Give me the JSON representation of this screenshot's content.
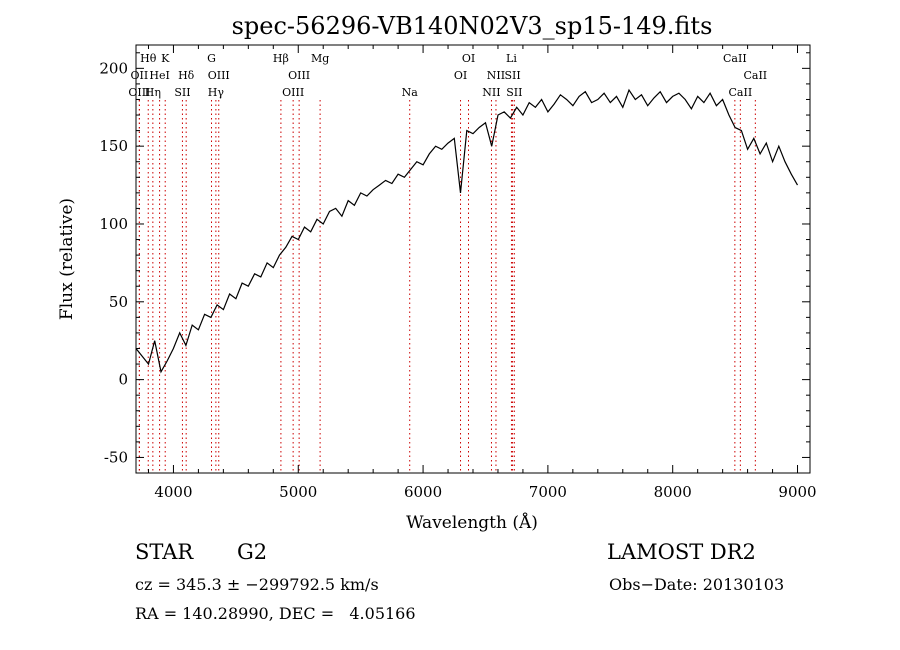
{
  "chart_data": {
    "type": "line",
    "title": "spec-56296-VB140N02V3_sp15-149.fits",
    "xlabel": "Wavelength (Å)",
    "ylabel": "Flux (relative)",
    "xlim": [
      3700,
      9100
    ],
    "ylim": [
      -60,
      215
    ],
    "xticks": [
      4000,
      5000,
      6000,
      7000,
      8000,
      9000
    ],
    "yticks": [
      -50,
      0,
      50,
      100,
      150,
      200
    ],
    "grid": false,
    "line_color": "#000000",
    "marker_color": "#cc0000",
    "series": [
      {
        "x": [
          3700,
          3750,
          3800,
          3850,
          3900,
          3950,
          4000,
          4050,
          4100,
          4150,
          4200,
          4250,
          4300,
          4350,
          4400,
          4450,
          4500,
          4550,
          4600,
          4650,
          4700,
          4750,
          4800,
          4850,
          4900,
          4950,
          5000,
          5050,
          5100,
          5150,
          5200,
          5250,
          5300,
          5350,
          5400,
          5450,
          5500,
          5550,
          5600,
          5650,
          5700,
          5750,
          5800,
          5850,
          5900,
          5950,
          6000,
          6050,
          6100,
          6150,
          6200,
          6250,
          6300,
          6350,
          6400,
          6450,
          6500,
          6550,
          6600,
          6650,
          6700,
          6750,
          6800,
          6850,
          6900,
          6950,
          7000,
          7050,
          7100,
          7150,
          7200,
          7250,
          7300,
          7350,
          7400,
          7450,
          7500,
          7550,
          7600,
          7650,
          7700,
          7750,
          7800,
          7850,
          7900,
          7950,
          8000,
          8050,
          8100,
          8150,
          8200,
          8250,
          8300,
          8350,
          8400,
          8450,
          8500,
          8550,
          8600,
          8650,
          8700,
          8750,
          8800,
          8850,
          8900,
          8950,
          9000
        ],
        "y": [
          20,
          15,
          10,
          25,
          5,
          12,
          20,
          30,
          22,
          35,
          32,
          42,
          40,
          48,
          45,
          55,
          52,
          62,
          60,
          68,
          66,
          75,
          72,
          80,
          85,
          92,
          90,
          98,
          95,
          103,
          100,
          108,
          110,
          105,
          115,
          112,
          120,
          118,
          122,
          125,
          128,
          126,
          132,
          130,
          135,
          140,
          138,
          145,
          150,
          148,
          152,
          155,
          120,
          160,
          158,
          162,
          165,
          150,
          170,
          172,
          168,
          175,
          170,
          178,
          175,
          180,
          172,
          177,
          183,
          180,
          176,
          182,
          185,
          178,
          180,
          184,
          178,
          182,
          175,
          186,
          180,
          183,
          176,
          181,
          185,
          178,
          182,
          184,
          180,
          174,
          182,
          178,
          184,
          176,
          180,
          170,
          162,
          160,
          148,
          155,
          145,
          152,
          140,
          150,
          140,
          132,
          125
        ]
      }
    ],
    "spectral_lines": [
      {
        "label": "Hθ",
        "x": 3798,
        "row": 1
      },
      {
        "label": "OII",
        "x": 3727,
        "row": 2
      },
      {
        "label": "OIII",
        "x": 3727,
        "row": 3
      },
      {
        "label": "HeI",
        "x": 3889,
        "row": 2
      },
      {
        "label": "Hη",
        "x": 3835,
        "row": 3
      },
      {
        "label": "K",
        "x": 3934,
        "row": 1
      },
      {
        "label": "Hδ",
        "x": 4102,
        "row": 2
      },
      {
        "label": "SII",
        "x": 4072,
        "row": 3
      },
      {
        "label": "G",
        "x": 4305,
        "row": 1
      },
      {
        "label": "OIII",
        "x": 4363,
        "row": 2
      },
      {
        "label": "Hγ",
        "x": 4340,
        "row": 3
      },
      {
        "label": "Hβ",
        "x": 4861,
        "row": 1
      },
      {
        "label": "OIII",
        "x": 5007,
        "row": 2
      },
      {
        "label": "OIII",
        "x": 4959,
        "row": 3
      },
      {
        "label": "Mg",
        "x": 5175,
        "row": 1
      },
      {
        "label": "Na",
        "x": 5893,
        "row": 3
      },
      {
        "label": "OI",
        "x": 6364,
        "row": 1
      },
      {
        "label": "OI",
        "x": 6300,
        "row": 2
      },
      {
        "label": "NII",
        "x": 6584,
        "row": 2
      },
      {
        "label": "NII",
        "x": 6548,
        "row": 3
      },
      {
        "label": "Li",
        "x": 6708,
        "row": 1
      },
      {
        "label": "SII",
        "x": 6717,
        "row": 2
      },
      {
        "label": "SII",
        "x": 6731,
        "row": 3
      },
      {
        "label": "CaII",
        "x": 8498,
        "row": 1
      },
      {
        "label": "CaII",
        "x": 8662,
        "row": 2
      },
      {
        "label": "CaII",
        "x": 8542,
        "row": 3
      }
    ]
  },
  "info": {
    "object_class": "STAR",
    "subclass": "G2",
    "survey": "LAMOST DR2",
    "redshift_line": "cz = 345.3 ± −299792.5 km/s",
    "obs_date_line": "Obs−Date: 20130103",
    "coords_line": "RA = 140.28990, DEC =   4.05166"
  }
}
